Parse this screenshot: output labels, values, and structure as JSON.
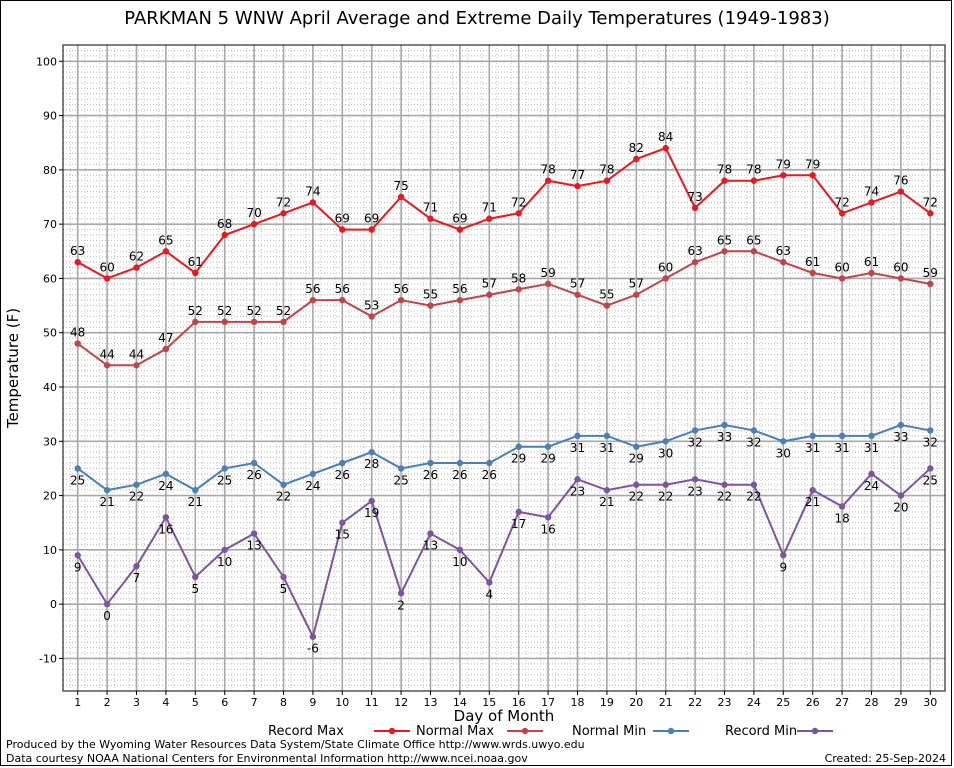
{
  "chart_data": {
    "type": "line",
    "title": "PARKMAN 5 WNW April Average and Extreme Daily Temperatures (1949-1983)",
    "xlabel": "Day of Month",
    "ylabel": "Temperature (F)",
    "x": [
      1,
      2,
      3,
      4,
      5,
      6,
      7,
      8,
      9,
      10,
      11,
      12,
      13,
      14,
      15,
      16,
      17,
      18,
      19,
      20,
      21,
      22,
      23,
      24,
      25,
      26,
      27,
      28,
      29,
      30
    ],
    "xlim": [
      0.5,
      30.5
    ],
    "ylim": [
      -16,
      103
    ],
    "yticks": [
      -10,
      0,
      10,
      20,
      30,
      40,
      50,
      60,
      70,
      80,
      90,
      100
    ],
    "grid": true,
    "legend_position": "bottom",
    "series": [
      {
        "name": "Record Max",
        "color": "#e8191e",
        "label_pos": "above",
        "values": [
          63,
          60,
          62,
          65,
          61,
          68,
          70,
          72,
          74,
          69,
          69,
          75,
          71,
          69,
          71,
          72,
          78,
          77,
          78,
          82,
          84,
          73,
          78,
          78,
          79,
          79,
          72,
          74,
          76,
          72
        ]
      },
      {
        "name": "Normal Max",
        "color": "#c0444a",
        "label_pos": "above",
        "values": [
          48,
          44,
          44,
          47,
          52,
          52,
          52,
          52,
          56,
          56,
          53,
          56,
          55,
          56,
          57,
          58,
          59,
          57,
          55,
          57,
          60,
          63,
          65,
          65,
          63,
          61,
          60,
          61,
          60,
          59
        ]
      },
      {
        "name": "Normal Min",
        "color": "#4a7fb8",
        "label_pos": "below",
        "values": [
          25,
          21,
          22,
          24,
          21,
          25,
          26,
          22,
          24,
          26,
          28,
          25,
          26,
          26,
          26,
          29,
          29,
          31,
          31,
          29,
          30,
          32,
          33,
          32,
          30,
          31,
          31,
          31,
          33,
          32
        ]
      },
      {
        "name": "Record Min",
        "color": "#7d559e",
        "label_pos": "below",
        "values": [
          9,
          0,
          7,
          16,
          5,
          10,
          13,
          5,
          -6,
          15,
          19,
          2,
          13,
          10,
          4,
          17,
          16,
          23,
          21,
          22,
          22,
          23,
          22,
          22,
          9,
          21,
          18,
          24,
          20,
          25
        ]
      }
    ]
  },
  "footer": {
    "produced_by": "Produced by the Wyoming Water Resources Data System/State Climate Office http://www.wrds.uwyo.edu",
    "courtesy": "Data courtesy NOAA National Centers for Environmental Information http://www.ncei.noaa.gov",
    "created": "Created:  25-Sep-2024"
  }
}
